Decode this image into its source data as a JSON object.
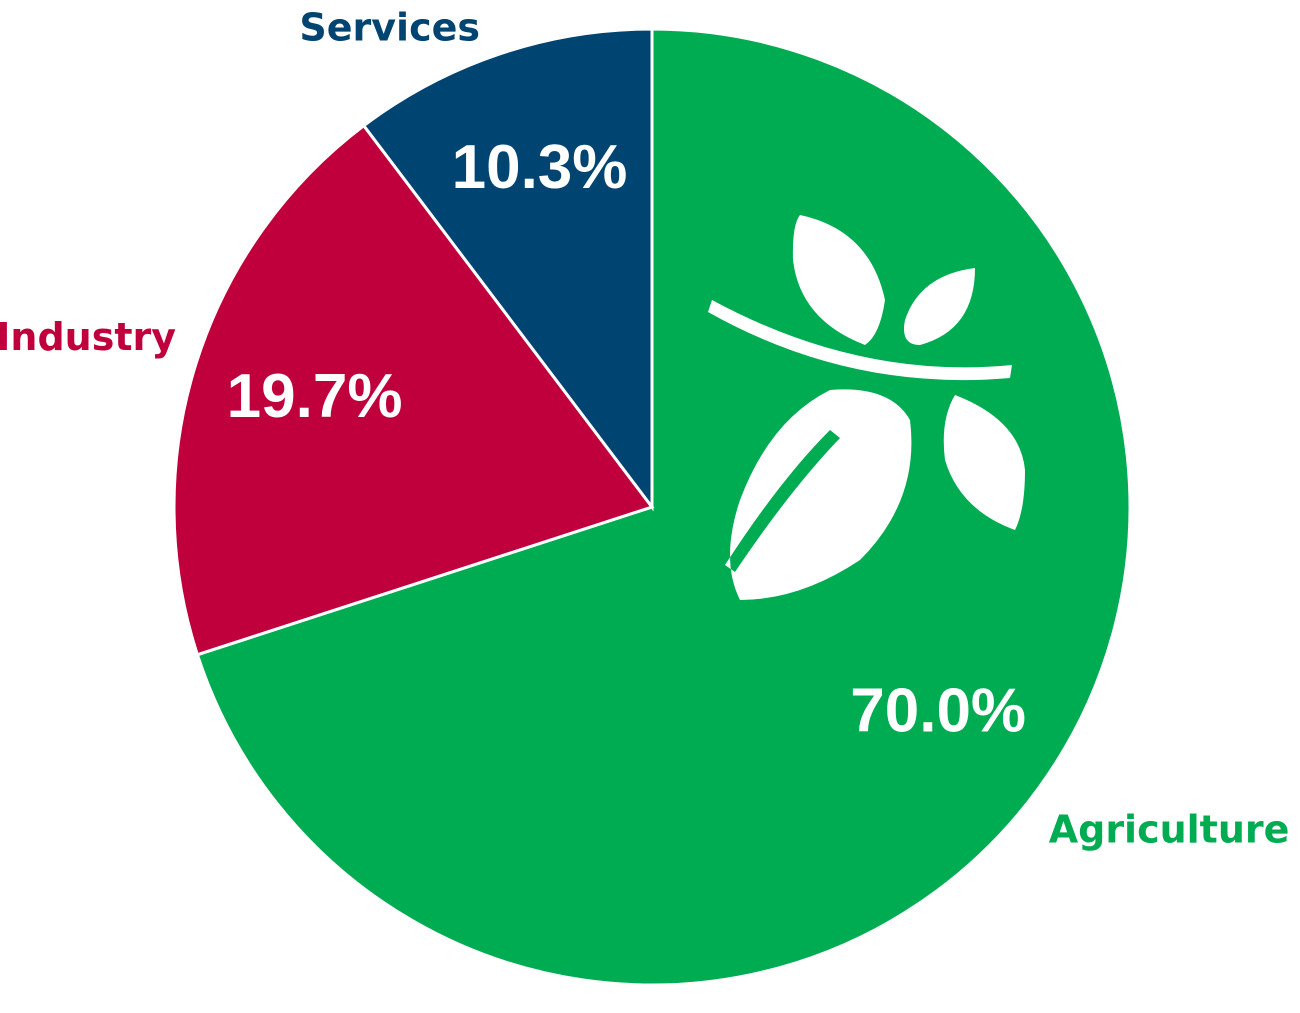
{
  "chart_data": {
    "type": "pie",
    "categories": [
      "Agriculture",
      "Industry",
      "Services"
    ],
    "values": [
      70.0,
      19.7,
      10.3
    ],
    "value_labels": [
      "70.0%",
      "19.7%",
      "10.3%"
    ],
    "colors": [
      "#00ac52",
      "#c0003c",
      "#004472"
    ]
  }
}
